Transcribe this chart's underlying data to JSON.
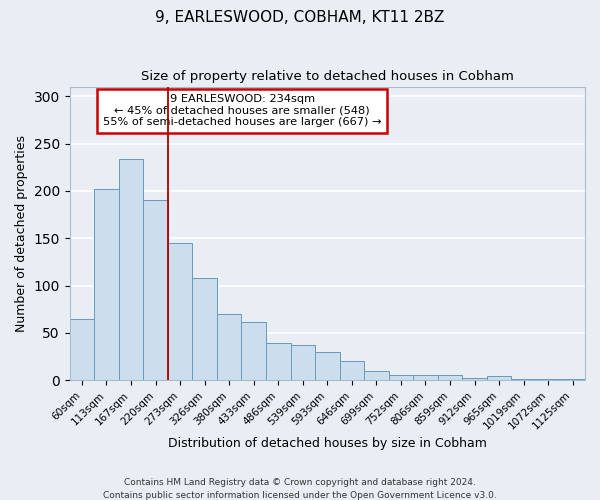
{
  "title1": "9, EARLESWOOD, COBHAM, KT11 2BZ",
  "title2": "Size of property relative to detached houses in Cobham",
  "xlabel": "Distribution of detached houses by size in Cobham",
  "ylabel": "Number of detached properties",
  "bar_color": "#ccdded",
  "bar_edge_color": "#6699bb",
  "bin_labels": [
    "60sqm",
    "113sqm",
    "167sqm",
    "220sqm",
    "273sqm",
    "326sqm",
    "380sqm",
    "433sqm",
    "486sqm",
    "539sqm",
    "593sqm",
    "646sqm",
    "699sqm",
    "752sqm",
    "806sqm",
    "859sqm",
    "912sqm",
    "965sqm",
    "1019sqm",
    "1072sqm",
    "1125sqm"
  ],
  "bar_heights": [
    65,
    202,
    234,
    191,
    145,
    108,
    70,
    62,
    39,
    37,
    30,
    20,
    10,
    5,
    5,
    5,
    2,
    4,
    1,
    1,
    1
  ],
  "vline_x_index": 3,
  "vline_color": "#aa0000",
  "annotation_title": "9 EARLESWOOD: 234sqm",
  "annotation_line1": "← 45% of detached houses are smaller (548)",
  "annotation_line2": "55% of semi-detached houses are larger (667) →",
  "annotation_box_color": "#cc0000",
  "ylim": [
    0,
    310
  ],
  "yticks": [
    0,
    50,
    100,
    150,
    200,
    250,
    300
  ],
  "footer1": "Contains HM Land Registry data © Crown copyright and database right 2024.",
  "footer2": "Contains public sector information licensed under the Open Government Licence v3.0.",
  "background_color": "#e8eef4",
  "grid_color": "#ffffff"
}
